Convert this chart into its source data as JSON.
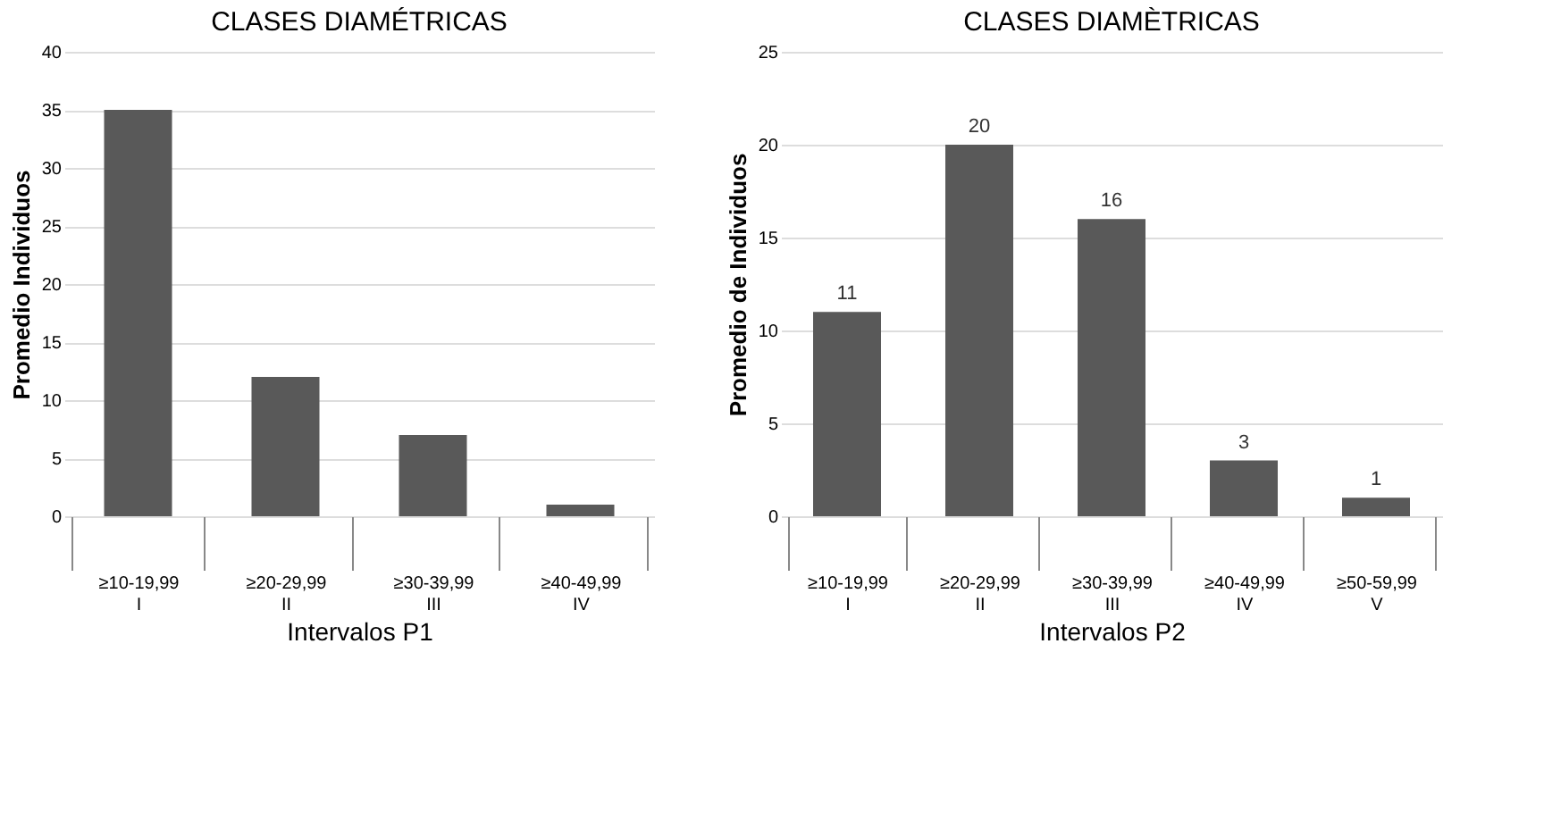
{
  "chart_data": [
    {
      "type": "bar",
      "title": "CLASES DIAMÉTRICAS",
      "xlabel": "Intervalos P1",
      "ylabel": "Promedio Individuos",
      "categories": [
        "≥10-19,99\nI",
        "≥20-29,99\nII",
        "≥30-39,99\nIII",
        "≥40-49,99\nIV"
      ],
      "values": [
        35,
        12,
        7,
        1
      ],
      "color": "#595959",
      "ylim": [
        0,
        40
      ],
      "yticks": [
        0,
        5,
        10,
        15,
        20,
        25,
        30,
        35,
        40
      ],
      "grid": "y"
    },
    {
      "type": "bar",
      "title": "CLASES DIAMÈTRICAS",
      "xlabel": "Intervalos P2",
      "ylabel": "Promedio de Individuos",
      "categories": [
        "≥10-19,99\nI",
        "≥20-29,99\nII",
        "≥30-39,99\nIII",
        "≥40-49,99\nIV",
        "≥50-59,99\nV"
      ],
      "values": [
        11,
        20,
        16,
        3,
        1
      ],
      "color": "#595959",
      "ylim": [
        0,
        25
      ],
      "yticks": [
        0,
        5,
        10,
        15,
        20,
        25
      ],
      "grid": "y",
      "data_labels": true
    }
  ]
}
